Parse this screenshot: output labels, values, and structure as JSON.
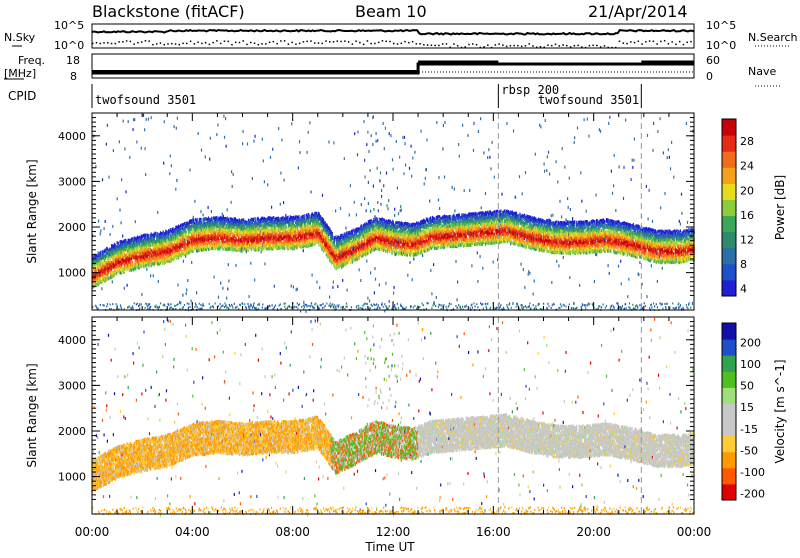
{
  "header": {
    "station": "Blackstone (fitACF)",
    "beam": "Beam 10",
    "date": "21/Apr/2014"
  },
  "top_labels": {
    "nsky": "N.Sky",
    "nsearch": "N.Search",
    "freq": "Freq.",
    "freq_unit": "[MHz]",
    "nave": "Nave",
    "cpid": "CPID",
    "noise_ticks_left": [
      "10^5",
      "10^0"
    ],
    "noise_ticks_right": [
      "10^5",
      "10^0"
    ],
    "freq_ticks": [
      "18",
      "8"
    ],
    "nave_ticks": [
      "60",
      "0"
    ]
  },
  "cpid_segments": [
    {
      "label": "twofsound 3501"
    },
    {
      "label": "rbsp 200"
    },
    {
      "label": "twofsound 3501"
    }
  ],
  "colors": {
    "power_scale": [
      "#1f1fd6",
      "#1f50c8",
      "#2b6fa6",
      "#2f8a6d",
      "#3aa85a",
      "#8fcc3c",
      "#e6dc1e",
      "#f5a11a",
      "#f26b18",
      "#e32b16",
      "#c8000a"
    ],
    "velocity_scale": [
      "#e00000",
      "#ff5a00",
      "#ff9a00",
      "#ffcc33",
      "#c8c8c8",
      "#c8c8c8",
      "#9ee07a",
      "#50c020",
      "#2fa34f",
      "#1f4fc8",
      "#1010a8"
    ]
  },
  "chart_data": [
    {
      "type": "heatmap",
      "title": "",
      "parameter": "Power",
      "xlabel": "Time UT",
      "ylabel": "Slant Range [km]",
      "colorbar_label": "Power [dB]",
      "colorbar_ticks": [
        "28",
        "24",
        "20",
        "16",
        "12",
        "8",
        "4"
      ],
      "x_ticks": [
        "00:00",
        "04:00",
        "08:00",
        "12:00",
        "16:00",
        "20:00",
        "00:00"
      ],
      "y_ticks": [
        "1000",
        "2000",
        "3000",
        "4000"
      ],
      "xlim": [
        0,
        24
      ],
      "ylim": [
        180,
        4500
      ],
      "clim": [
        0,
        30
      ],
      "main_echo_band": {
        "time_hours": [
          0,
          1,
          2,
          3,
          4,
          5,
          6,
          7,
          8,
          9,
          9.7,
          10.5,
          11.3,
          12,
          12.8,
          13.5,
          14.5,
          15.5,
          16.5,
          17.5,
          18.5,
          19.5,
          20.5,
          21.5,
          22.5,
          23.5,
          24
        ],
        "range_km": [
          900,
          1200,
          1350,
          1450,
          1700,
          1750,
          1700,
          1750,
          1750,
          1850,
          1300,
          1500,
          1750,
          1650,
          1600,
          1750,
          1800,
          1850,
          1900,
          1750,
          1650,
          1650,
          1700,
          1600,
          1450,
          1450,
          1500
        ]
      }
    },
    {
      "type": "heatmap",
      "title": "",
      "parameter": "Velocity",
      "xlabel": "Time UT",
      "ylabel": "Slant Range [km]",
      "colorbar_label": "Velocity [m s^-1]",
      "colorbar_ticks": [
        "200",
        "100",
        "50",
        "15",
        "-15",
        "-50",
        "-100",
        "-200"
      ],
      "x_ticks": [
        "00:00",
        "04:00",
        "08:00",
        "12:00",
        "16:00",
        "20:00",
        "00:00"
      ],
      "y_ticks": [
        "1000",
        "2000",
        "3000",
        "4000"
      ],
      "xlim": [
        0,
        24
      ],
      "ylim": [
        180,
        4500
      ],
      "clim": [
        -250,
        250
      ]
    }
  ],
  "x_axis_title": "Time UT"
}
